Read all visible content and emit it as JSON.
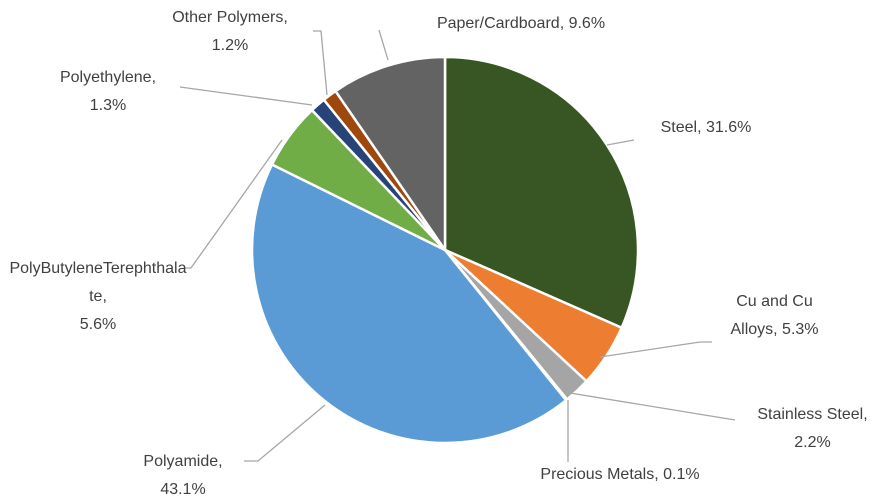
{
  "chart_data": {
    "type": "pie",
    "categories": [
      "Steel",
      "Cu and Cu Alloys",
      "Stainless Steel",
      "Precious Metals",
      "Polyamide",
      "PolyButyleneTerephthalate",
      "Polyethylene",
      "Other Polymers",
      "Paper/Cardboard"
    ],
    "values": [
      31.6,
      5.3,
      2.2,
      0.1,
      43.1,
      5.6,
      1.3,
      1.2,
      9.6
    ],
    "value_labels": [
      "31.6%",
      "5.3%",
      "2.2%",
      "0.1%",
      "43.1%",
      "5.6%",
      "1.3%",
      "1.2%",
      "9.6%"
    ],
    "label_separator": ", ",
    "colors": [
      "#375623",
      "#ed7d31",
      "#a5a5a5",
      "#ffc000",
      "#5b9bd5",
      "#70ad47",
      "#264478",
      "#9e480e",
      "#636363"
    ]
  }
}
